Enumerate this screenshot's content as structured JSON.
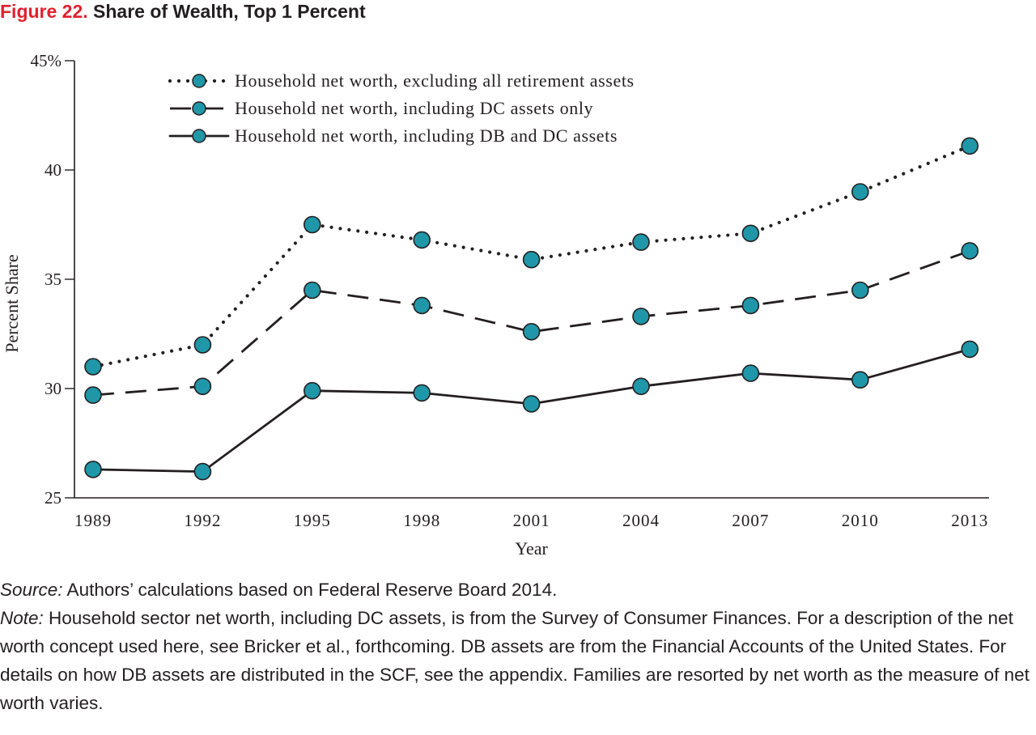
{
  "figure": {
    "label": "Figure 22.",
    "title": "Share of Wealth, Top 1 Percent",
    "label_color": "#e0202f"
  },
  "chart_data": {
    "type": "line",
    "xlabel": "Year",
    "ylabel": "Percent Share",
    "x": [
      "1989",
      "1992",
      "1995",
      "1998",
      "2001",
      "2004",
      "2007",
      "2010",
      "2013"
    ],
    "ylim": [
      25,
      45
    ],
    "yticks": [
      25,
      30,
      35,
      40,
      45
    ],
    "ytick_labels": [
      "25",
      "30",
      "35",
      "40",
      "45%"
    ],
    "grid": false,
    "legend_position": "top-left",
    "marker_color": "#1f97a8",
    "series": [
      {
        "name": "Household net worth, excluding all retirement assets",
        "style": "dotted",
        "values": [
          31.0,
          32.0,
          37.5,
          36.8,
          35.9,
          36.7,
          37.1,
          39.0,
          41.1
        ]
      },
      {
        "name": "Household net worth, including DC assets only",
        "style": "dashed",
        "values": [
          29.7,
          30.1,
          34.5,
          33.8,
          32.6,
          33.3,
          33.8,
          34.5,
          36.3
        ]
      },
      {
        "name": "Household net worth, including DB and DC assets",
        "style": "solid",
        "values": [
          26.3,
          26.2,
          29.9,
          29.8,
          29.3,
          30.1,
          30.7,
          30.4,
          31.8
        ]
      }
    ]
  },
  "notes": {
    "source_label": "Source:",
    "source_text": " Authors’ calculations based on Federal Reserve Board 2014.",
    "note_label": "Note:",
    "note_text": " Household sector net worth, including DC assets, is from the Survey of Consumer Finances. For a description of the net worth concept used here, see Bricker et al., forthcoming. DB assets are from the Financial Accounts of the United States. For details on how DB assets are distributed in the SCF, see the appendix.  Families are resorted by net worth as the measure of net worth varies."
  }
}
